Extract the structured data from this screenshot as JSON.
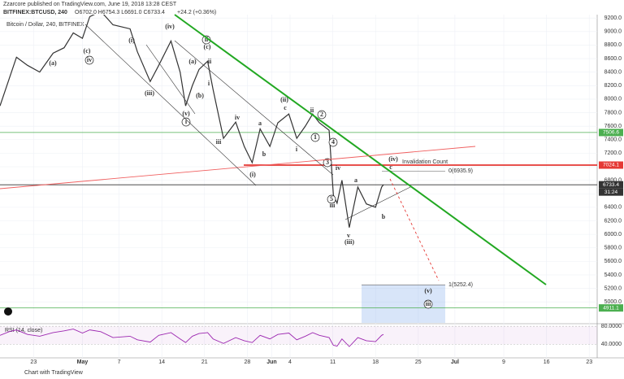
{
  "header": {
    "author": "Zzarcore",
    "published": "published on TradingView.com, June 19, 2018 13:28 CEST",
    "symbol": "BITFINEX:BTCUSD, 240",
    "ohlc": "O6702.0 H6754.3 L6691.0 C6733.4",
    "change": "+24.2 (+0.36%)"
  },
  "chart_data": {
    "type": "line",
    "title": "Bitcoin / Dollar, 240, BITFINEX",
    "x": [
      -5.5,
      -4,
      -2.8,
      -1,
      1,
      3.2,
      5,
      6.5,
      8,
      9.2,
      11,
      13,
      15.8,
      17,
      19.1,
      20.5,
      22.5,
      24,
      24.9,
      26,
      27.1,
      28.5,
      29.4,
      31.1,
      33.1,
      34.5,
      35.8,
      37.1,
      38.7,
      40,
      41.8,
      43.1,
      44.5,
      45.7,
      46.8,
      48.4,
      48.8,
      49.1,
      49.7,
      50.5,
      51.7,
      53.1,
      54.5,
      56,
      57,
      57.3
    ],
    "values": [
      7900,
      8300,
      8620,
      8500,
      8400,
      8680,
      8760,
      8980,
      8900,
      9220,
      9300,
      9100,
      9040,
      8700,
      8260,
      8500,
      8860,
      8400,
      7900,
      8200,
      8440,
      8560,
      8140,
      7420,
      7660,
      7300,
      7060,
      7560,
      7300,
      7650,
      7780,
      7420,
      7600,
      7780,
      7650,
      7540,
      6980,
      6580,
      6460,
      6800,
      6100,
      6700,
      6450,
      6400,
      6700,
      6733.4
    ],
    "color": "#333333",
    "xlim": [
      -5.5,
      92.3
    ],
    "xticks": [
      {
        "value": 0,
        "label": "23"
      },
      {
        "value": 8,
        "label": "May"
      },
      {
        "value": 14,
        "label": "7"
      },
      {
        "value": 21,
        "label": "14"
      },
      {
        "value": 28,
        "label": "21"
      },
      {
        "value": 35,
        "label": "28"
      },
      {
        "value": 39,
        "label": "Jun"
      },
      {
        "value": 42,
        "label": "4"
      },
      {
        "value": 49,
        "label": "11"
      },
      {
        "value": 56,
        "label": "18"
      },
      {
        "value": 63,
        "label": "25"
      },
      {
        "value": 69,
        "label": "Jul"
      },
      {
        "value": 77,
        "label": "9"
      },
      {
        "value": 84,
        "label": "16"
      },
      {
        "value": 91,
        "label": "23"
      }
    ],
    "ylim": [
      4690,
      9250
    ],
    "yticks": [
      {
        "value": 5000,
        "label": "5000.0"
      },
      {
        "value": 5200,
        "label": "5200.0"
      },
      {
        "value": 5400,
        "label": "5400.0"
      },
      {
        "value": 5600,
        "label": "5600.0"
      },
      {
        "value": 5800,
        "label": "5800.0"
      },
      {
        "value": 6000,
        "label": "6000.0"
      },
      {
        "value": 6200,
        "label": "6200.0"
      },
      {
        "value": 6400,
        "label": "6400.0"
      },
      {
        "value": 6600,
        "label": "6600.0"
      },
      {
        "value": 6800,
        "label": "6800.0"
      },
      {
        "value": 7000,
        "label": "7000.0"
      },
      {
        "value": 7200,
        "label": "7200.0"
      },
      {
        "value": 7400,
        "label": "7400.0"
      },
      {
        "value": 7600,
        "label": "7600.0"
      },
      {
        "value": 7800,
        "label": "7800.0"
      },
      {
        "value": 8000,
        "label": "8000.0"
      },
      {
        "value": 8200,
        "label": "8200.0"
      },
      {
        "value": 8400,
        "label": "8400.0"
      },
      {
        "value": 8600,
        "label": "8600.0"
      },
      {
        "value": 8800,
        "label": "8800.0"
      },
      {
        "value": 9000,
        "label": "9000.0"
      },
      {
        "value": 9200,
        "label": "9200.0"
      }
    ],
    "grid": true,
    "price_labels": [
      {
        "value": 7506.6,
        "color": "#4caf50"
      },
      {
        "value": 7024.1,
        "color": "#e53935"
      },
      {
        "value": 6733.4,
        "color": "#333333"
      },
      {
        "value": 4911.1,
        "color": "#4caf50"
      }
    ],
    "countdown": "31:24",
    "fib": [
      {
        "value": 5252.4,
        "label": "1(5252.4)"
      },
      {
        "value": 6935.9,
        "label": "0(6935.9)"
      }
    ],
    "note": "Invalidation Count",
    "annotations": [
      "(a)",
      "(c)",
      "iv",
      "(i)",
      "(iii)",
      "(iv)",
      "(v)",
      "i",
      "(a)",
      "ii",
      "(c)",
      "ii",
      "i",
      "(b)",
      "iii",
      "iv",
      "(i)",
      "a",
      "b",
      "(ii)",
      "c",
      "i",
      "ii",
      "2",
      "1",
      "4",
      "3",
      "iv",
      "5",
      "iii",
      "a",
      "b",
      "v",
      "(iii)",
      "c",
      "(iv)",
      "(v)",
      "iii"
    ],
    "rsi": {
      "title": "RSI (14, close)",
      "values": [
        60,
        68,
        72,
        62,
        58,
        66,
        70,
        74,
        65,
        72,
        68,
        55,
        58,
        50,
        45,
        60,
        66,
        52,
        44,
        58,
        64,
        66,
        52,
        42,
        55,
        48,
        44,
        60,
        52,
        62,
        65,
        50,
        58,
        66,
        60,
        55,
        45,
        38,
        36,
        52,
        35,
        55,
        48,
        46,
        60,
        62
      ],
      "color": "#9c27b0",
      "ylim": [
        10,
        84
      ],
      "yticks": [
        {
          "value": 40,
          "label": "40.0000"
        },
        {
          "value": 80,
          "label": "80.0000"
        }
      ]
    }
  },
  "footer": "Chart with TradingView"
}
